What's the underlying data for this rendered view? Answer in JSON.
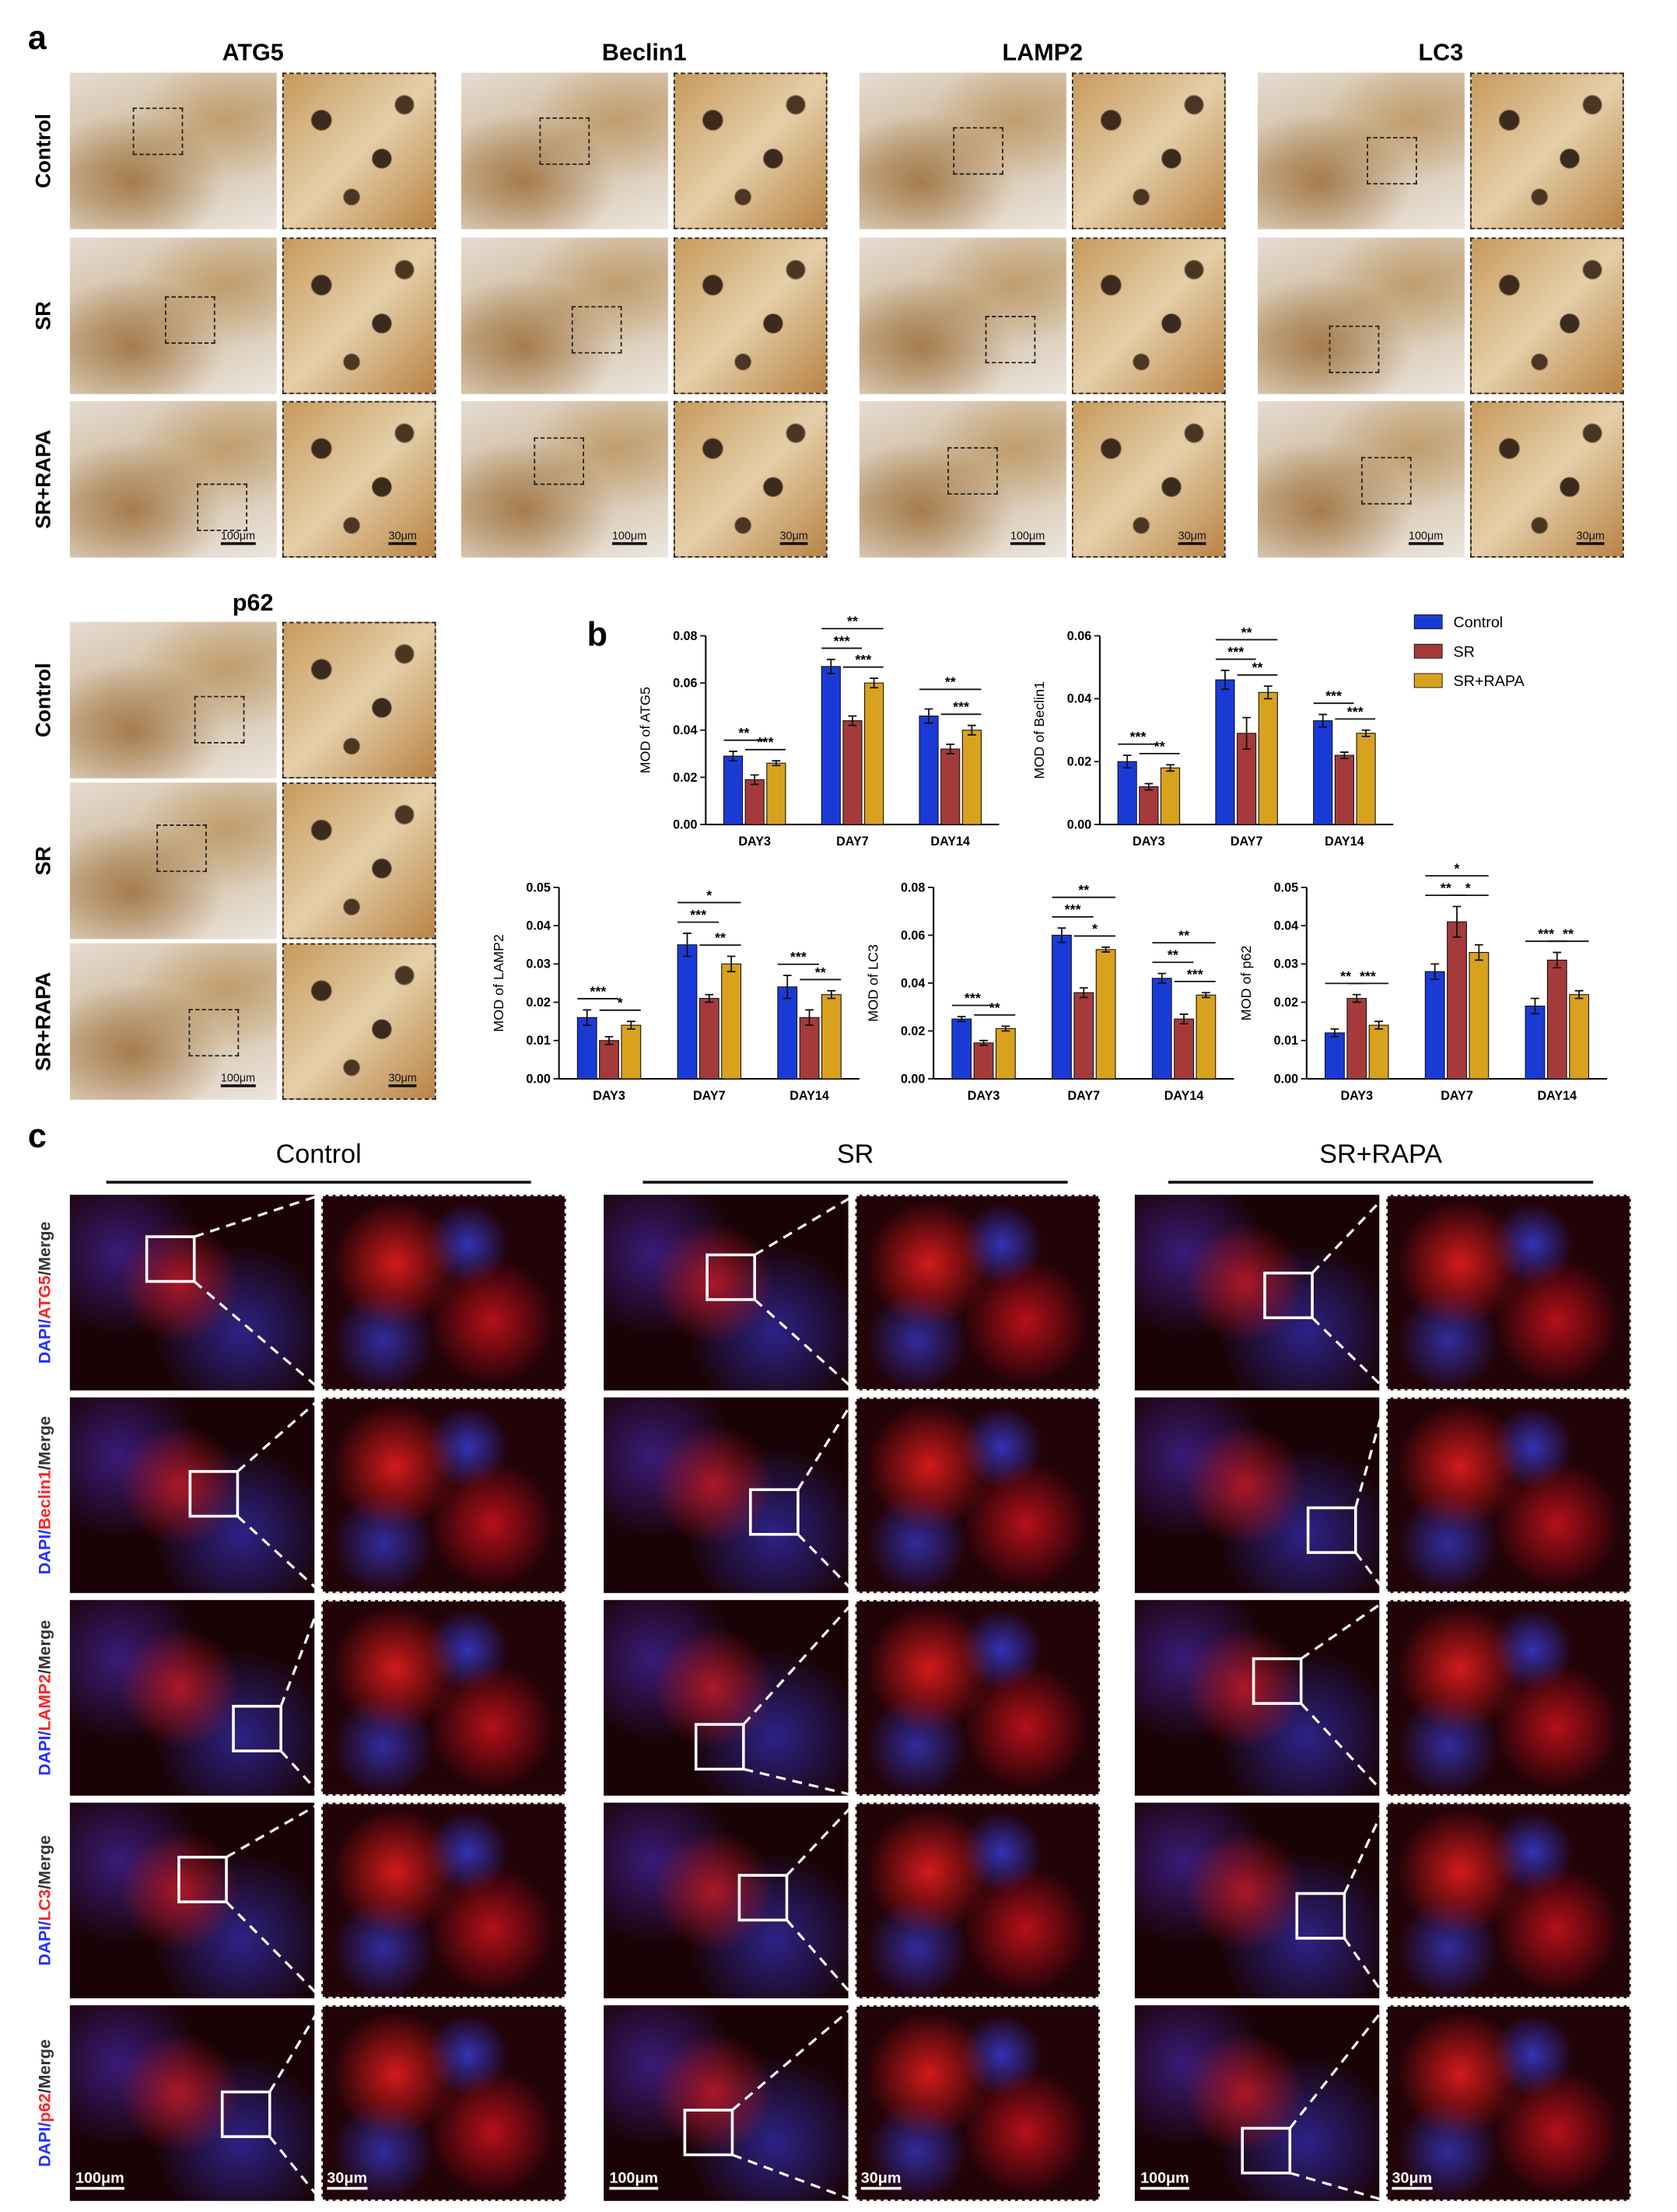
{
  "panel_a": {
    "label": "a",
    "markers": [
      "ATG5",
      "Beclin1",
      "LAMP2",
      "LC3",
      "p62"
    ],
    "row_labels": [
      "Control",
      "SR",
      "SR+RAPA"
    ],
    "scale_bars": [
      "100μm",
      "30μm"
    ]
  },
  "panel_b": {
    "label": "b"
  },
  "chart_data": [
    {
      "type": "bar",
      "ylabel": "MOD of ATG5",
      "categories": [
        "DAY3",
        "DAY7",
        "DAY14"
      ],
      "series": [
        {
          "name": "Control",
          "color": "#1a3ad6",
          "values": [
            0.029,
            0.067,
            0.046
          ],
          "errors": [
            0.002,
            0.003,
            0.003
          ]
        },
        {
          "name": "SR",
          "color": "#a53a3a",
          "values": [
            0.019,
            0.044,
            0.032
          ],
          "errors": [
            0.002,
            0.002,
            0.002
          ]
        },
        {
          "name": "SR+RAPA",
          "color": "#d8a21e",
          "values": [
            0.026,
            0.06,
            0.04
          ],
          "errors": [
            0.001,
            0.002,
            0.002
          ]
        }
      ],
      "ylim": [
        0,
        0.08
      ],
      "yticks": [
        {
          "value": 0,
          "label": "0.00"
        },
        {
          "value": 0.02,
          "label": "0.02"
        },
        {
          "value": 0.04,
          "label": "0.04"
        },
        {
          "value": 0.06,
          "label": "0.06"
        },
        {
          "value": 0.08,
          "label": "0.08"
        }
      ],
      "significance": [
        [
          {
            "label": "**",
            "pair": [
              0,
              1
            ]
          },
          {
            "label": "***",
            "pair": [
              1,
              2
            ]
          }
        ],
        [
          {
            "label": "**",
            "pair": [
              0,
              2
            ]
          },
          {
            "label": "***",
            "pair": [
              0,
              1
            ]
          },
          {
            "label": "***",
            "pair": [
              1,
              2
            ]
          }
        ],
        [
          {
            "label": "**",
            "pair": [
              0,
              2
            ]
          },
          {
            "label": "***",
            "pair": [
              1,
              2
            ]
          }
        ]
      ]
    },
    {
      "type": "bar",
      "ylabel": "MOD of Beclin1",
      "categories": [
        "DAY3",
        "DAY7",
        "DAY14"
      ],
      "legend": "right",
      "series": [
        {
          "name": "Control",
          "color": "#1a3ad6",
          "values": [
            0.02,
            0.046,
            0.033
          ],
          "errors": [
            0.002,
            0.003,
            0.002
          ]
        },
        {
          "name": "SR",
          "color": "#a53a3a",
          "values": [
            0.012,
            0.029,
            0.022
          ],
          "errors": [
            0.001,
            0.005,
            0.001
          ]
        },
        {
          "name": "SR+RAPA",
          "color": "#d8a21e",
          "values": [
            0.018,
            0.042,
            0.029
          ],
          "errors": [
            0.001,
            0.002,
            0.001
          ]
        }
      ],
      "ylim": [
        0,
        0.06
      ],
      "yticks": [
        {
          "value": 0,
          "label": "0.00"
        },
        {
          "value": 0.02,
          "label": "0.02"
        },
        {
          "value": 0.04,
          "label": "0.04"
        },
        {
          "value": 0.06,
          "label": "0.06"
        }
      ],
      "significance": [
        [
          {
            "label": "***",
            "pair": [
              0,
              1
            ]
          },
          {
            "label": "**",
            "pair": [
              1,
              2
            ]
          }
        ],
        [
          {
            "label": "**",
            "pair": [
              0,
              2
            ]
          },
          {
            "label": "***",
            "pair": [
              0,
              1
            ]
          },
          {
            "label": "**",
            "pair": [
              1,
              2
            ]
          }
        ],
        [
          {
            "label": "***",
            "pair": [
              0,
              1
            ]
          },
          {
            "label": "***",
            "pair": [
              1,
              2
            ]
          }
        ]
      ]
    },
    {
      "type": "bar",
      "ylabel": "MOD of LAMP2",
      "categories": [
        "DAY3",
        "DAY7",
        "DAY14"
      ],
      "series": [
        {
          "name": "Control",
          "color": "#1a3ad6",
          "values": [
            0.016,
            0.035,
            0.024
          ],
          "errors": [
            0.002,
            0.003,
            0.003
          ]
        },
        {
          "name": "SR",
          "color": "#a53a3a",
          "values": [
            0.01,
            0.021,
            0.016
          ],
          "errors": [
            0.001,
            0.001,
            0.002
          ]
        },
        {
          "name": "SR+RAPA",
          "color": "#d8a21e",
          "values": [
            0.014,
            0.03,
            0.022
          ],
          "errors": [
            0.001,
            0.002,
            0.001
          ]
        }
      ],
      "ylim": [
        0,
        0.05
      ],
      "yticks": [
        {
          "value": 0,
          "label": "0.00"
        },
        {
          "value": 0.01,
          "label": "0.01"
        },
        {
          "value": 0.02,
          "label": "0.02"
        },
        {
          "value": 0.03,
          "label": "0.03"
        },
        {
          "value": 0.04,
          "label": "0.04"
        },
        {
          "value": 0.05,
          "label": "0.05"
        }
      ],
      "significance": [
        [
          {
            "label": "***",
            "pair": [
              0,
              1
            ]
          },
          {
            "label": "*",
            "pair": [
              1,
              2
            ]
          }
        ],
        [
          {
            "label": "*",
            "pair": [
              0,
              2
            ]
          },
          {
            "label": "***",
            "pair": [
              0,
              1
            ]
          },
          {
            "label": "**",
            "pair": [
              1,
              2
            ]
          }
        ],
        [
          {
            "label": "***",
            "pair": [
              0,
              1
            ]
          },
          {
            "label": "**",
            "pair": [
              1,
              2
            ]
          }
        ]
      ]
    },
    {
      "type": "bar",
      "ylabel": "MOD of LC3",
      "categories": [
        "DAY3",
        "DAY7",
        "DAY14"
      ],
      "series": [
        {
          "name": "Control",
          "color": "#1a3ad6",
          "values": [
            0.025,
            0.06,
            0.042
          ],
          "errors": [
            0.001,
            0.003,
            0.002
          ]
        },
        {
          "name": "SR",
          "color": "#a53a3a",
          "values": [
            0.015,
            0.036,
            0.025
          ],
          "errors": [
            0.001,
            0.002,
            0.002
          ]
        },
        {
          "name": "SR+RAPA",
          "color": "#d8a21e",
          "values": [
            0.021,
            0.054,
            0.035
          ],
          "errors": [
            0.001,
            0.001,
            0.001
          ]
        }
      ],
      "ylim": [
        0,
        0.08
      ],
      "yticks": [
        {
          "value": 0,
          "label": "0.00"
        },
        {
          "value": 0.02,
          "label": "0.02"
        },
        {
          "value": 0.04,
          "label": "0.04"
        },
        {
          "value": 0.06,
          "label": "0.06"
        },
        {
          "value": 0.08,
          "label": "0.08"
        }
      ],
      "significance": [
        [
          {
            "label": "***",
            "pair": [
              0,
              1
            ]
          },
          {
            "label": "**",
            "pair": [
              1,
              2
            ]
          }
        ],
        [
          {
            "label": "**",
            "pair": [
              0,
              2
            ]
          },
          {
            "label": "***",
            "pair": [
              0,
              1
            ]
          },
          {
            "label": "*",
            "pair": [
              1,
              2
            ]
          }
        ],
        [
          {
            "label": "**",
            "pair": [
              0,
              2
            ]
          },
          {
            "label": "**",
            "pair": [
              0,
              1
            ]
          },
          {
            "label": "***",
            "pair": [
              1,
              2
            ]
          }
        ]
      ]
    },
    {
      "type": "bar",
      "ylabel": "MOD of p62",
      "categories": [
        "DAY3",
        "DAY7",
        "DAY14"
      ],
      "series": [
        {
          "name": "Control",
          "color": "#1a3ad6",
          "values": [
            0.012,
            0.028,
            0.019
          ],
          "errors": [
            0.001,
            0.002,
            0.002
          ]
        },
        {
          "name": "SR",
          "color": "#a53a3a",
          "values": [
            0.021,
            0.041,
            0.031
          ],
          "errors": [
            0.001,
            0.004,
            0.002
          ]
        },
        {
          "name": "SR+RAPA",
          "color": "#d8a21e",
          "values": [
            0.014,
            0.033,
            0.022
          ],
          "errors": [
            0.001,
            0.002,
            0.001
          ]
        }
      ],
      "ylim": [
        0,
        0.05
      ],
      "yticks": [
        {
          "value": 0,
          "label": "0.00"
        },
        {
          "value": 0.01,
          "label": "0.01"
        },
        {
          "value": 0.02,
          "label": "0.02"
        },
        {
          "value": 0.03,
          "label": "0.03"
        },
        {
          "value": 0.04,
          "label": "0.04"
        },
        {
          "value": 0.05,
          "label": "0.05"
        }
      ],
      "significance": [
        [
          {
            "label": "**",
            "pair": [
              0,
              1
            ]
          },
          {
            "label": "***",
            "pair": [
              1,
              2
            ]
          }
        ],
        [
          {
            "label": "*",
            "pair": [
              0,
              2
            ]
          },
          {
            "label": "**",
            "pair": [
              0,
              1
            ]
          },
          {
            "label": "*",
            "pair": [
              1,
              2
            ]
          }
        ],
        [
          {
            "label": "***",
            "pair": [
              0,
              1
            ]
          },
          {
            "label": "**",
            "pair": [
              1,
              2
            ]
          }
        ]
      ]
    }
  ],
  "panel_c": {
    "label": "c",
    "column_titles": [
      "Control",
      "SR",
      "SR+RAPA"
    ],
    "row_labels": [
      [
        "DAPI/",
        "ATG5",
        "/Merge"
      ],
      [
        "DAPI/",
        "Beclin1",
        "/Merge"
      ],
      [
        "DAPI/",
        "LAMP2",
        "/Merge"
      ],
      [
        "DAPI/",
        "LC3",
        "/Merge"
      ],
      [
        "DAPI/",
        "p62",
        "/Merge"
      ]
    ],
    "scale_bars": [
      "100μm",
      "30μm"
    ]
  }
}
